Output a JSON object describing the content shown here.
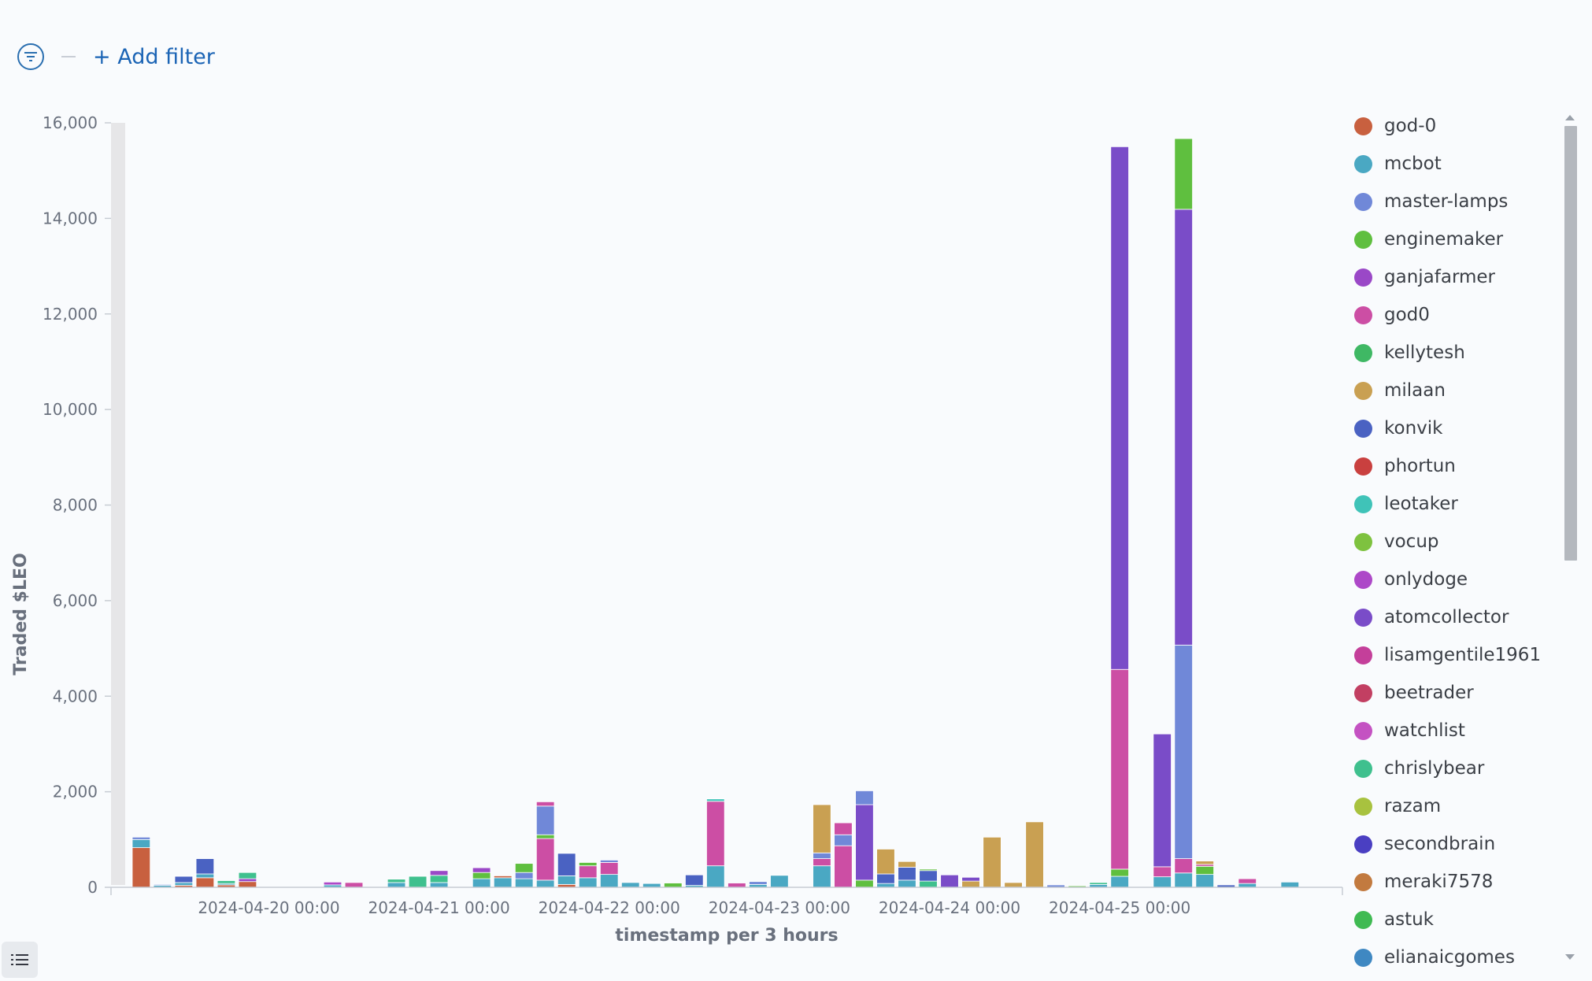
{
  "filter_bar": {
    "add_filter_label": "+ Add filter"
  },
  "legend": {
    "items": [
      {
        "name": "god-0",
        "color": "#c8603f"
      },
      {
        "name": "mcbot",
        "color": "#4aa8c3"
      },
      {
        "name": "master-lamps",
        "color": "#7088d8"
      },
      {
        "name": "enginemaker",
        "color": "#5fbf3f"
      },
      {
        "name": "ganjafarmer",
        "color": "#9a48c7"
      },
      {
        "name": "god0",
        "color": "#cc4ea4"
      },
      {
        "name": "kellytesh",
        "color": "#3fb864"
      },
      {
        "name": "milaan",
        "color": "#c9a052"
      },
      {
        "name": "konvik",
        "color": "#4a62c2"
      },
      {
        "name": "phortun",
        "color": "#c9403f"
      },
      {
        "name": "leotaker",
        "color": "#3fc3b8"
      },
      {
        "name": "vocup",
        "color": "#7ec23f"
      },
      {
        "name": "onlydoge",
        "color": "#ad48c8"
      },
      {
        "name": "atomcollector",
        "color": "#7a4cc8"
      },
      {
        "name": "lisamgentile1961",
        "color": "#c43f9a"
      },
      {
        "name": "beetrader",
        "color": "#c23f62"
      },
      {
        "name": "watchlist",
        "color": "#c452c2"
      },
      {
        "name": "chrislybear",
        "color": "#3fc08e"
      },
      {
        "name": "razam",
        "color": "#a8c23f"
      },
      {
        "name": "secondbrain",
        "color": "#4a3fc2"
      },
      {
        "name": "meraki7578",
        "color": "#c27a3f"
      },
      {
        "name": "astuk",
        "color": "#3fba52"
      },
      {
        "name": "elianaicgomes",
        "color": "#3f88c2"
      }
    ]
  },
  "chart_data": {
    "type": "bar",
    "stacked": true,
    "ylabel": "Traded $LEO",
    "xlabel": "timestamp per 3 hours",
    "ylim": [
      0,
      16000
    ],
    "y_ticks": [
      0,
      2000,
      4000,
      6000,
      8000,
      10000,
      12000,
      14000,
      16000
    ],
    "y_tick_labels": [
      "0",
      "2,000",
      "4,000",
      "6,000",
      "8,000",
      "10,000",
      "12,000",
      "14,000",
      "16,000"
    ],
    "x_tick_labels": [
      "2024-04-20 00:00",
      "2024-04-21 00:00",
      "2024-04-22 00:00",
      "2024-04-23 00:00",
      "2024-04-24 00:00",
      "2024-04-25 00:00"
    ],
    "x_tick_indices": [
      6,
      14,
      22,
      30,
      38,
      46
    ],
    "bars": [
      {
        "i": 0,
        "segments": [
          {
            "c": 0,
            "v": 830
          },
          {
            "c": 1,
            "v": 170
          },
          {
            "c": 2,
            "v": 50
          }
        ]
      },
      {
        "i": 1,
        "segments": [
          {
            "c": 1,
            "v": 40
          },
          {
            "c": 2,
            "v": 20
          }
        ]
      },
      {
        "i": 2,
        "segments": [
          {
            "c": 0,
            "v": 40
          },
          {
            "c": 1,
            "v": 60
          },
          {
            "c": 8,
            "v": 130
          }
        ]
      },
      {
        "i": 3,
        "segments": [
          {
            "c": 0,
            "v": 200
          },
          {
            "c": 1,
            "v": 80
          },
          {
            "c": 8,
            "v": 320
          }
        ]
      },
      {
        "i": 4,
        "segments": [
          {
            "c": 0,
            "v": 50
          },
          {
            "c": 1,
            "v": 30
          },
          {
            "c": 17,
            "v": 60
          }
        ]
      },
      {
        "i": 5,
        "segments": [
          {
            "c": 0,
            "v": 120
          },
          {
            "c": 4,
            "v": 60
          },
          {
            "c": 17,
            "v": 130
          }
        ]
      },
      {
        "i": 9,
        "segments": [
          {
            "c": 1,
            "v": 50
          },
          {
            "c": 12,
            "v": 60
          }
        ]
      },
      {
        "i": 10,
        "segments": [
          {
            "c": 5,
            "v": 100
          }
        ]
      },
      {
        "i": 12,
        "segments": [
          {
            "c": 1,
            "v": 100
          },
          {
            "c": 17,
            "v": 70
          }
        ]
      },
      {
        "i": 13,
        "segments": [
          {
            "c": 17,
            "v": 230
          }
        ]
      },
      {
        "i": 14,
        "segments": [
          {
            "c": 1,
            "v": 100
          },
          {
            "c": 17,
            "v": 150
          },
          {
            "c": 4,
            "v": 100
          }
        ]
      },
      {
        "i": 16,
        "segments": [
          {
            "c": 1,
            "v": 180
          },
          {
            "c": 3,
            "v": 130
          },
          {
            "c": 4,
            "v": 100
          }
        ]
      },
      {
        "i": 17,
        "segments": [
          {
            "c": 1,
            "v": 200
          },
          {
            "c": 0,
            "v": 40
          }
        ]
      },
      {
        "i": 18,
        "segments": [
          {
            "c": 1,
            "v": 180
          },
          {
            "c": 2,
            "v": 130
          },
          {
            "c": 3,
            "v": 190
          }
        ]
      },
      {
        "i": 19,
        "segments": [
          {
            "c": 1,
            "v": 150
          },
          {
            "c": 5,
            "v": 870
          },
          {
            "c": 3,
            "v": 80
          },
          {
            "c": 2,
            "v": 600
          },
          {
            "c": 5,
            "v": 90
          }
        ]
      },
      {
        "i": 20,
        "segments": [
          {
            "c": 0,
            "v": 60
          },
          {
            "c": 1,
            "v": 180
          },
          {
            "c": 8,
            "v": 470
          }
        ]
      },
      {
        "i": 21,
        "segments": [
          {
            "c": 1,
            "v": 200
          },
          {
            "c": 5,
            "v": 250
          },
          {
            "c": 3,
            "v": 70
          }
        ]
      },
      {
        "i": 22,
        "segments": [
          {
            "c": 1,
            "v": 270
          },
          {
            "c": 5,
            "v": 250
          },
          {
            "c": 2,
            "v": 50
          }
        ]
      },
      {
        "i": 23,
        "segments": [
          {
            "c": 1,
            "v": 100
          }
        ]
      },
      {
        "i": 24,
        "segments": [
          {
            "c": 1,
            "v": 80
          }
        ]
      },
      {
        "i": 25,
        "segments": [
          {
            "c": 3,
            "v": 90
          }
        ]
      },
      {
        "i": 26,
        "segments": [
          {
            "c": 1,
            "v": 40
          },
          {
            "c": 8,
            "v": 220
          }
        ]
      },
      {
        "i": 27,
        "segments": [
          {
            "c": 1,
            "v": 450
          },
          {
            "c": 5,
            "v": 1350
          },
          {
            "c": 10,
            "v": 50
          }
        ]
      },
      {
        "i": 28,
        "segments": [
          {
            "c": 5,
            "v": 90
          }
        ]
      },
      {
        "i": 29,
        "segments": [
          {
            "c": 1,
            "v": 60
          },
          {
            "c": 2,
            "v": 60
          }
        ]
      },
      {
        "i": 30,
        "segments": [
          {
            "c": 1,
            "v": 250
          }
        ]
      },
      {
        "i": 32,
        "segments": [
          {
            "c": 1,
            "v": 450
          },
          {
            "c": 5,
            "v": 150
          },
          {
            "c": 2,
            "v": 120
          },
          {
            "c": 7,
            "v": 1010
          }
        ]
      },
      {
        "i": 33,
        "segments": [
          {
            "c": 5,
            "v": 870
          },
          {
            "c": 2,
            "v": 230
          },
          {
            "c": 5,
            "v": 250
          }
        ]
      },
      {
        "i": 34,
        "segments": [
          {
            "c": 3,
            "v": 150
          },
          {
            "c": 13,
            "v": 1580
          },
          {
            "c": 2,
            "v": 290
          }
        ]
      },
      {
        "i": 35,
        "segments": [
          {
            "c": 1,
            "v": 80
          },
          {
            "c": 8,
            "v": 200
          },
          {
            "c": 7,
            "v": 520
          }
        ]
      },
      {
        "i": 36,
        "segments": [
          {
            "c": 1,
            "v": 150
          },
          {
            "c": 8,
            "v": 270
          },
          {
            "c": 7,
            "v": 120
          }
        ]
      },
      {
        "i": 37,
        "segments": [
          {
            "c": 17,
            "v": 130
          },
          {
            "c": 8,
            "v": 220
          },
          {
            "c": 3,
            "v": 30
          }
        ]
      },
      {
        "i": 38,
        "segments": [
          {
            "c": 13,
            "v": 260
          }
        ]
      },
      {
        "i": 39,
        "segments": [
          {
            "c": 7,
            "v": 130
          },
          {
            "c": 13,
            "v": 80
          }
        ]
      },
      {
        "i": 40,
        "segments": [
          {
            "c": 7,
            "v": 1050
          }
        ]
      },
      {
        "i": 41,
        "segments": [
          {
            "c": 7,
            "v": 100
          }
        ]
      },
      {
        "i": 42,
        "segments": [
          {
            "c": 7,
            "v": 1370
          }
        ]
      },
      {
        "i": 43,
        "segments": [
          {
            "c": 2,
            "v": 50
          }
        ]
      },
      {
        "i": 44,
        "segments": [
          {
            "c": 3,
            "v": 30
          }
        ]
      },
      {
        "i": 45,
        "segments": [
          {
            "c": 1,
            "v": 60
          },
          {
            "c": 17,
            "v": 40
          }
        ]
      },
      {
        "i": 46,
        "segments": [
          {
            "c": 1,
            "v": 230
          },
          {
            "c": 3,
            "v": 150
          },
          {
            "c": 5,
            "v": 4180
          },
          {
            "c": 13,
            "v": 10940
          }
        ]
      },
      {
        "i": 48,
        "segments": [
          {
            "c": 1,
            "v": 220
          },
          {
            "c": 5,
            "v": 210
          },
          {
            "c": 13,
            "v": 2780
          }
        ]
      },
      {
        "i": 49,
        "segments": [
          {
            "c": 1,
            "v": 300
          },
          {
            "c": 5,
            "v": 300
          },
          {
            "c": 2,
            "v": 4470
          },
          {
            "c": 13,
            "v": 9120
          },
          {
            "c": 3,
            "v": 1480
          }
        ]
      },
      {
        "i": 50,
        "segments": [
          {
            "c": 1,
            "v": 270
          },
          {
            "c": 3,
            "v": 170
          },
          {
            "c": 5,
            "v": 40
          },
          {
            "c": 7,
            "v": 70
          }
        ]
      },
      {
        "i": 51,
        "segments": [
          {
            "c": 8,
            "v": 50
          }
        ]
      },
      {
        "i": 52,
        "segments": [
          {
            "c": 1,
            "v": 80
          },
          {
            "c": 5,
            "v": 100
          }
        ]
      },
      {
        "i": 54,
        "segments": [
          {
            "c": 1,
            "v": 110
          }
        ]
      }
    ],
    "bar_slots": 57
  }
}
